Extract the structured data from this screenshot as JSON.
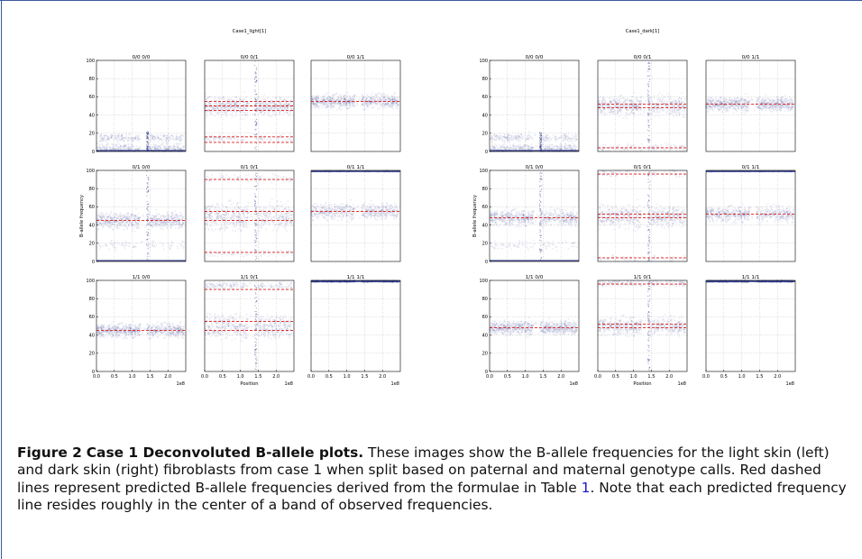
{
  "figure": {
    "axis_label_y": "B-allele frequency",
    "axis_label_x": "Position",
    "exponent_label": "1e8",
    "y_ticks": [
      "0",
      "20",
      "40",
      "60",
      "80",
      "100"
    ],
    "x_ticks": [
      "0.0",
      "0.5",
      "1.0",
      "1.5",
      "2.0"
    ]
  },
  "chart_data": [
    {
      "type": "scatter",
      "title": "Case1_light[1]",
      "panels": [
        {
          "title": "0/0 0/0",
          "predicted_baf": [
            0
          ]
        },
        {
          "title": "0/0 0/1",
          "predicted_baf": [
            10,
            16,
            45,
            50,
            55
          ]
        },
        {
          "title": "0/0 1/1",
          "predicted_baf": [
            55
          ]
        },
        {
          "title": "0/1 0/0",
          "predicted_baf": [
            0,
            45
          ]
        },
        {
          "title": "0/1 0/1",
          "predicted_baf": [
            10,
            45,
            55,
            90
          ]
        },
        {
          "title": "0/1 1/1",
          "predicted_baf": [
            55,
            100
          ]
        },
        {
          "title": "1/1 0/0",
          "predicted_baf": [
            45
          ]
        },
        {
          "title": "1/1 0/1",
          "predicted_baf": [
            45,
            55,
            90
          ]
        },
        {
          "title": "1/1 1/1",
          "predicted_baf": [
            100
          ]
        }
      ],
      "xlabel": "Position",
      "ylabel": "B-allele frequency",
      "ylim": [
        0,
        100
      ],
      "xlim": [
        0,
        2.5
      ],
      "x_scale_note": "1e8",
      "grid": true
    },
    {
      "type": "scatter",
      "title": "Case1_dark[1]",
      "panels": [
        {
          "title": "0/0 0/0",
          "predicted_baf": [
            0
          ]
        },
        {
          "title": "0/0 0/1",
          "predicted_baf": [
            4,
            48,
            52
          ]
        },
        {
          "title": "0/0 1/1",
          "predicted_baf": [
            52
          ]
        },
        {
          "title": "0/1 0/0",
          "predicted_baf": [
            0,
            48
          ]
        },
        {
          "title": "0/1 0/1",
          "predicted_baf": [
            4,
            48,
            52,
            96
          ]
        },
        {
          "title": "0/1 1/1",
          "predicted_baf": [
            52,
            100
          ]
        },
        {
          "title": "1/1 0/0",
          "predicted_baf": [
            48
          ]
        },
        {
          "title": "1/1 0/1",
          "predicted_baf": [
            48,
            52,
            96
          ]
        },
        {
          "title": "1/1 1/1",
          "predicted_baf": [
            100
          ]
        }
      ],
      "xlabel": "Position",
      "ylabel": "B-allele frequency",
      "ylim": [
        0,
        100
      ],
      "xlim": [
        0,
        2.5
      ],
      "x_scale_note": "1e8",
      "grid": true
    }
  ],
  "caption": {
    "label": "Figure 2",
    "title": "Case 1 Deconvoluted B-allele plots.",
    "text_before_ref": " These images show the B-allele frequencies for the light skin (left) and dark skin (right) fibroblasts from case 1 when split based on paternal and maternal genotype calls. Red dashed lines represent predicted B-allele frequencies derived from the formulae in Table ",
    "table_ref": "1",
    "text_after_ref": ". Note that each predicted frequency line resides roughly in the center of a band of observed frequencies."
  },
  "colors": {
    "scatter": "#1f2a80",
    "predicted_line": "#e01818",
    "grid": "#bbbbbb",
    "frame": "#3a5a9c"
  }
}
